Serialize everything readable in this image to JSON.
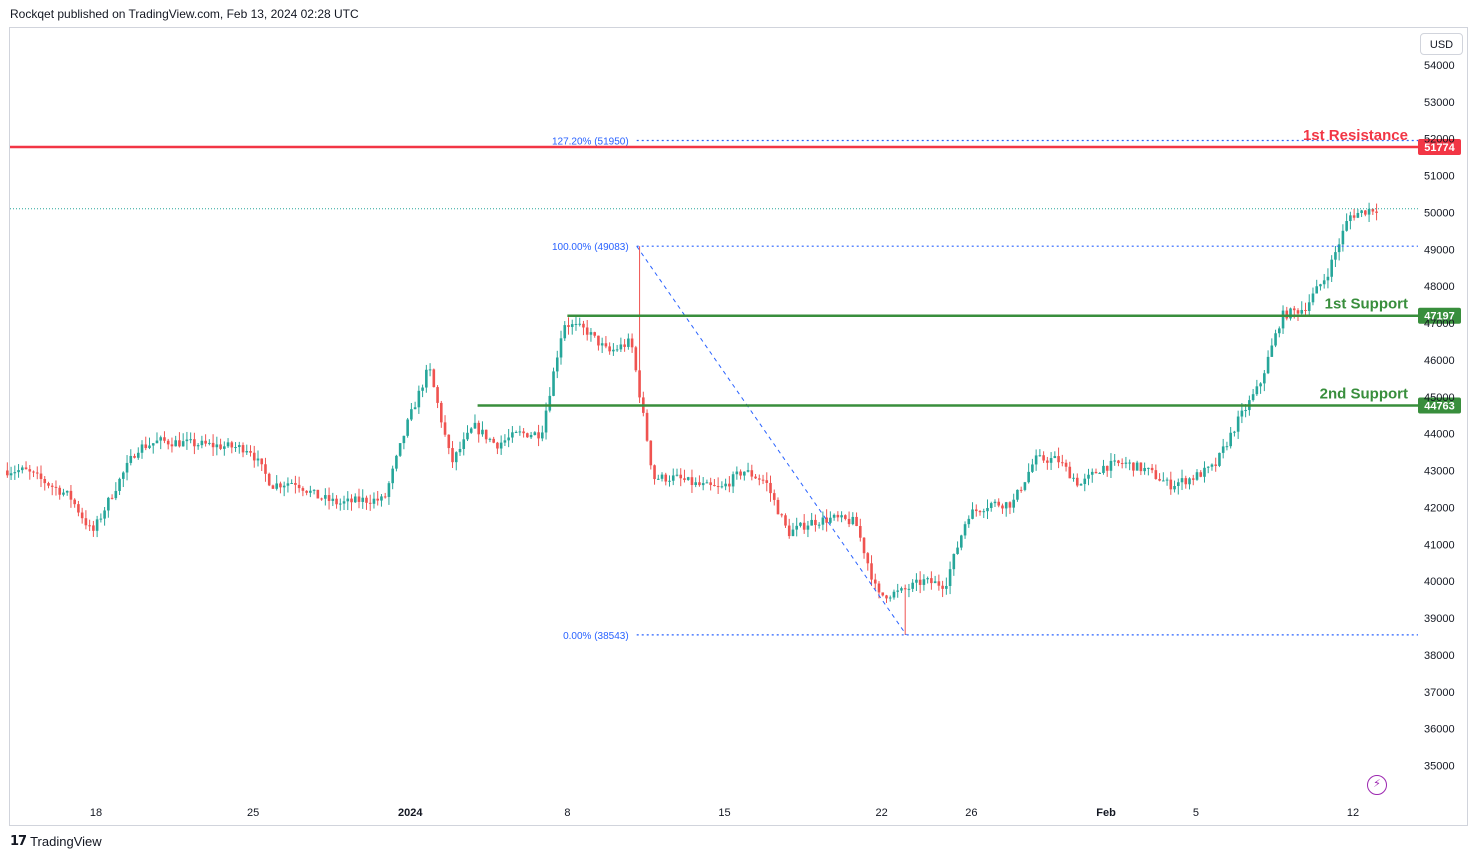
{
  "header": {
    "text": "Rockqet published on TradingView.com, Feb 13, 2024 02:28 UTC"
  },
  "footer": {
    "brand": "TradingView",
    "logo_icon": "tradingview-logo-icon"
  },
  "toolbar": {
    "currency": "USD",
    "quick_action_icon": "lightning-icon"
  },
  "colors": {
    "up": "#26a69a",
    "down": "#ef5350",
    "resistance": "#f23645",
    "support": "#388e3c",
    "fib": "#2962ff",
    "axis_text": "#131722",
    "grid": "#f0f3fa"
  },
  "chart_data": {
    "type": "candlestick",
    "y_range": [
      34200,
      55000
    ],
    "y_ticks": [
      "54000",
      "53000",
      "52000",
      "51000",
      "50000",
      "49000",
      "48000",
      "47000",
      "46000",
      "45000",
      "44000",
      "43000",
      "42000",
      "41000",
      "40000",
      "39000",
      "38000",
      "37000",
      "36000",
      "35000"
    ],
    "x_labels": [
      {
        "label": "18",
        "date": "2023-12-18",
        "bold": false
      },
      {
        "label": "25",
        "date": "2023-12-25",
        "bold": false
      },
      {
        "label": "2024",
        "date": "2024-01-01",
        "bold": true
      },
      {
        "label": "8",
        "date": "2024-01-08",
        "bold": false
      },
      {
        "label": "15",
        "date": "2024-01-15",
        "bold": false
      },
      {
        "label": "22",
        "date": "2024-01-22",
        "bold": false
      },
      {
        "label": "26",
        "date": "2024-01-26",
        "bold": false
      },
      {
        "label": "Feb",
        "date": "2024-02-01",
        "bold": true
      },
      {
        "label": "5",
        "date": "2024-02-05",
        "bold": false
      },
      {
        "label": "12",
        "date": "2024-02-12",
        "bold": false
      }
    ],
    "series_anchors": [
      [
        "2023-12-15",
        43000
      ],
      [
        "2023-12-17",
        42300
      ],
      [
        "2023-12-18",
        41300
      ],
      [
        "2023-12-19",
        42500
      ],
      [
        "2023-12-20",
        43600
      ],
      [
        "2023-12-21",
        43800
      ],
      [
        "2023-12-23",
        43700
      ],
      [
        "2023-12-25",
        43600
      ],
      [
        "2023-12-26",
        42600
      ],
      [
        "2023-12-27",
        42700
      ],
      [
        "2023-12-28",
        42300
      ],
      [
        "2023-12-29",
        42100
      ],
      [
        "2023-12-30",
        42200
      ],
      [
        "2023-12-31",
        42200
      ],
      [
        "2024-01-01",
        44200
      ],
      [
        "2024-01-02",
        45800
      ],
      [
        "2024-01-03",
        43200
      ],
      [
        "2024-01-04",
        44200
      ],
      [
        "2024-01-05",
        43700
      ],
      [
        "2024-01-06",
        44000
      ],
      [
        "2024-01-07",
        44000
      ],
      [
        "2024-01-08",
        47000
      ],
      [
        "2024-01-09",
        46800
      ],
      [
        "2024-01-10",
        46200
      ],
      [
        "2024-01-11",
        46500
      ],
      [
        "2024-01-12",
        42800
      ],
      [
        "2024-01-13",
        42800
      ],
      [
        "2024-01-14",
        42600
      ],
      [
        "2024-01-15",
        42500
      ],
      [
        "2024-01-16",
        43000
      ],
      [
        "2024-01-17",
        42700
      ],
      [
        "2024-01-18",
        41300
      ],
      [
        "2024-01-19",
        41600
      ],
      [
        "2024-01-20",
        41700
      ],
      [
        "2024-01-21",
        41600
      ],
      [
        "2024-01-22",
        39600
      ],
      [
        "2024-01-23",
        39700
      ],
      [
        "2024-01-24",
        40000
      ],
      [
        "2024-01-25",
        39900
      ],
      [
        "2024-01-26",
        41800
      ],
      [
        "2024-01-27",
        42100
      ],
      [
        "2024-01-28",
        42100
      ],
      [
        "2024-01-29",
        43300
      ],
      [
        "2024-01-30",
        43300
      ],
      [
        "2024-01-31",
        42600
      ],
      [
        "2024-02-01",
        43100
      ],
      [
        "2024-02-02",
        43200
      ],
      [
        "2024-02-03",
        43000
      ],
      [
        "2024-02-04",
        42600
      ],
      [
        "2024-02-05",
        42800
      ],
      [
        "2024-02-06",
        43100
      ],
      [
        "2024-02-07",
        44300
      ],
      [
        "2024-02-08",
        45300
      ],
      [
        "2024-02-09",
        47200
      ],
      [
        "2024-02-10",
        47400
      ],
      [
        "2024-02-11",
        48300
      ],
      [
        "2024-02-12",
        49900
      ],
      [
        "2024-02-13",
        50100
      ]
    ],
    "swing_high": {
      "date": "2024-01-11",
      "price": 49083
    },
    "swing_low": {
      "date": "2024-01-23",
      "price": 38543
    },
    "current_price": 50100,
    "levels": [
      {
        "label": "1st Resistance",
        "price": 51774,
        "badge": "51774",
        "kind": "resistance",
        "start_date": "2023-12-14"
      },
      {
        "label": "1st Support",
        "price": 47197,
        "badge": "47197",
        "kind": "support",
        "start_date": "2024-01-08"
      },
      {
        "label": "2nd Support",
        "price": 44763,
        "badge": "44763",
        "kind": "support",
        "start_date": "2024-01-04"
      }
    ],
    "fib_levels": [
      {
        "label": "127.20% (51950)",
        "price": 51950
      },
      {
        "label": "100.00% (49083)",
        "price": 49083
      },
      {
        "label": "0.00% (38543)",
        "price": 38543
      }
    ]
  }
}
